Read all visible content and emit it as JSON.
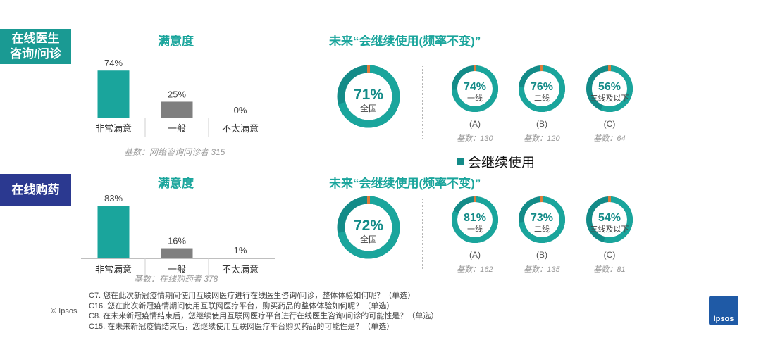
{
  "sections": [
    {
      "tag": [
        "在线医生",
        "咨询/问诊"
      ],
      "left_title": "满意度",
      "right_title": "未来“会继续使用(频率不变)”",
      "base_note": "基数：网络咨询问诊者 315",
      "national": {
        "value": 71,
        "label": "71%",
        "sublabel": "全国"
      },
      "tiers": [
        {
          "value": 74,
          "label": "74%",
          "sublabel": "一线",
          "letter": "(A)",
          "base": "基数：130"
        },
        {
          "value": 76,
          "label": "76%",
          "sublabel": "二线",
          "letter": "(B)",
          "base": "基数：120"
        },
        {
          "value": 56,
          "label": "56%",
          "sublabel": "三线及以下",
          "letter": "(C)",
          "base": "基数：64"
        }
      ]
    },
    {
      "tag": [
        "在线购药"
      ],
      "left_title": "满意度",
      "right_title": "未来“会继续使用(频率不变)”",
      "base_note": "基数：在线购药者 378",
      "national": {
        "value": 72,
        "label": "72%",
        "sublabel": "全国"
      },
      "tiers": [
        {
          "value": 81,
          "label": "81%",
          "sublabel": "一线",
          "letter": "(A)",
          "base": "基数：162"
        },
        {
          "value": 73,
          "label": "73%",
          "sublabel": "二线",
          "letter": "(B)",
          "base": "基数：135"
        },
        {
          "value": 54,
          "label": "54%",
          "sublabel": "三线及以下",
          "letter": "(C)",
          "base": "基数：81"
        }
      ]
    }
  ],
  "chart_data": [
    {
      "type": "bar",
      "title": "满意度",
      "categories": [
        "非常满意",
        "一般",
        "不太满意"
      ],
      "values": [
        74,
        25,
        0
      ],
      "labels": [
        "74%",
        "25%",
        "0%"
      ],
      "ylim": [
        0,
        100
      ]
    },
    {
      "type": "bar",
      "title": "满意度",
      "categories": [
        "非常满意",
        "一般",
        "不太满意"
      ],
      "values": [
        83,
        16,
        1
      ],
      "labels": [
        "83%",
        "16%",
        "1%"
      ],
      "ylim": [
        0,
        100
      ]
    }
  ],
  "legend_label": "会继续使用",
  "questions": [
    "C7. 您在此次新冠疫情期间使用互联网医疗进行在线医生咨询/问诊，整体体验如何呢？（单选）",
    "C16. 您在此次新冠疫情期间使用互联网医疗平台，购买药品的整体体验如何呢？（单选）",
    "C8. 在未来新冠疫情结束后，您继续使用互联网医疗平台进行在线医生咨询/问诊的可能性是？（单选）",
    "C15. 在未来新冠疫情结束后，您继续使用互联网医疗平台购买药品的可能性是？（单选）"
  ],
  "copyright": "© Ipsos",
  "logo_text": "Ipsos",
  "colors": {
    "teal": "#1aa59c",
    "dark_teal": "#138b88",
    "navy": "#2b3990",
    "gray": "#7f7f7f",
    "red": "#c0392b",
    "orange": "#e07b39"
  }
}
